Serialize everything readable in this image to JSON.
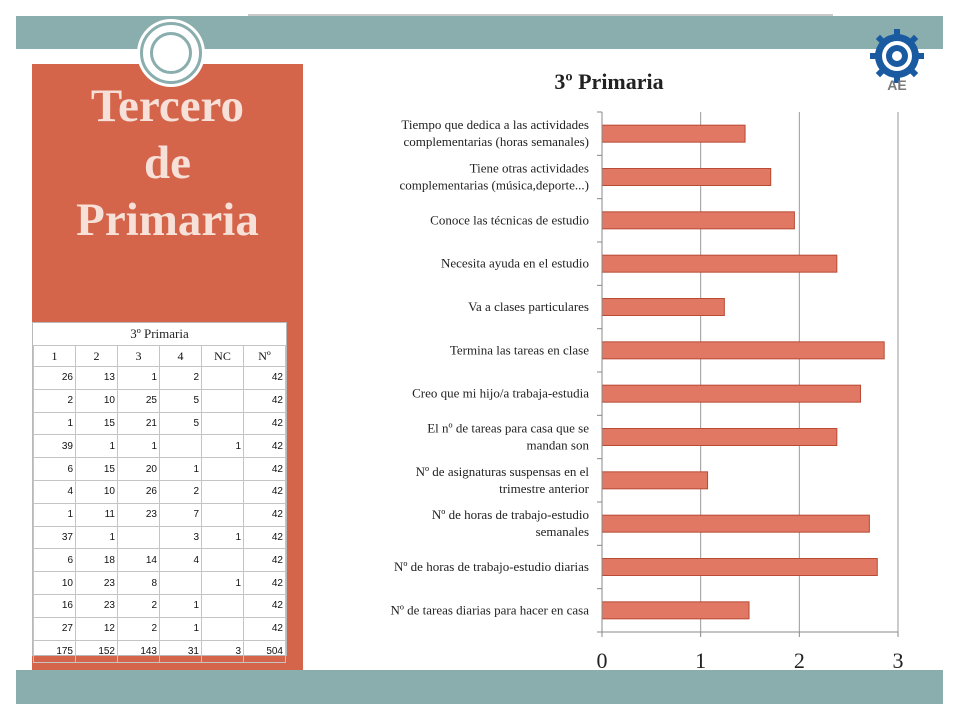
{
  "slide": {
    "title_lines": [
      "Tercero",
      "de",
      "Primaria"
    ],
    "colors": {
      "band": "#8aadad",
      "panel": "#d4654a",
      "bar": "#e07863"
    }
  },
  "logo": {
    "icon": "gear-emblem-icon",
    "text": "AE"
  },
  "table": {
    "title": "3º Primaria",
    "headers": [
      "1",
      "2",
      "3",
      "4",
      "NC",
      "Nº"
    ],
    "rows": [
      [
        "26",
        "13",
        "1",
        "2",
        "",
        "42"
      ],
      [
        "2",
        "10",
        "25",
        "5",
        "",
        "42"
      ],
      [
        "1",
        "15",
        "21",
        "5",
        "",
        "42"
      ],
      [
        "39",
        "1",
        "1",
        "",
        "1",
        "42"
      ],
      [
        "6",
        "15",
        "20",
        "1",
        "",
        "42"
      ],
      [
        "4",
        "10",
        "26",
        "2",
        "",
        "42"
      ],
      [
        "1",
        "11",
        "23",
        "7",
        "",
        "42"
      ],
      [
        "37",
        "1",
        "",
        "3",
        "1",
        "42"
      ],
      [
        "6",
        "18",
        "14",
        "4",
        "",
        "42"
      ],
      [
        "10",
        "23",
        "8",
        "",
        "1",
        "42"
      ],
      [
        "16",
        "23",
        "2",
        "1",
        "",
        "42"
      ],
      [
        "27",
        "12",
        "2",
        "1",
        "",
        "42"
      ],
      [
        "175",
        "152",
        "143",
        "31",
        "3",
        "504"
      ]
    ]
  },
  "chart_data": {
    "type": "bar",
    "orientation": "horizontal",
    "title": "3º Primaria",
    "categories": [
      [
        "Tiempo que dedica a las actividades",
        "complementarias (horas semanales)"
      ],
      [
        "Tiene otras actividades",
        "complementarias (música,deporte...)"
      ],
      [
        "Conoce las técnicas de estudio"
      ],
      [
        "Necesita ayuda en el estudio"
      ],
      [
        "Va a clases particulares"
      ],
      [
        "Termina las tareas en clase"
      ],
      [
        "Creo que mi hijo/a trabaja-estudia"
      ],
      [
        "El nº de tareas para casa que se",
        "mandan son"
      ],
      [
        "Nº de asignaturas suspensas en el",
        "trimestre anterior"
      ],
      [
        "Nº de horas de trabajo-estudio",
        "semanales"
      ],
      [
        "Nº de horas de trabajo-estudio diarias"
      ],
      [
        "Nº de tareas diarias para hacer en casa"
      ]
    ],
    "values": [
      1.45,
      1.71,
      1.95,
      2.38,
      1.24,
      2.86,
      2.62,
      2.38,
      1.07,
      2.71,
      2.79,
      1.49
    ],
    "xlim": [
      0,
      3
    ],
    "xticks": [
      "0",
      "1",
      "2",
      "3"
    ],
    "grid": true,
    "legend": "none"
  }
}
